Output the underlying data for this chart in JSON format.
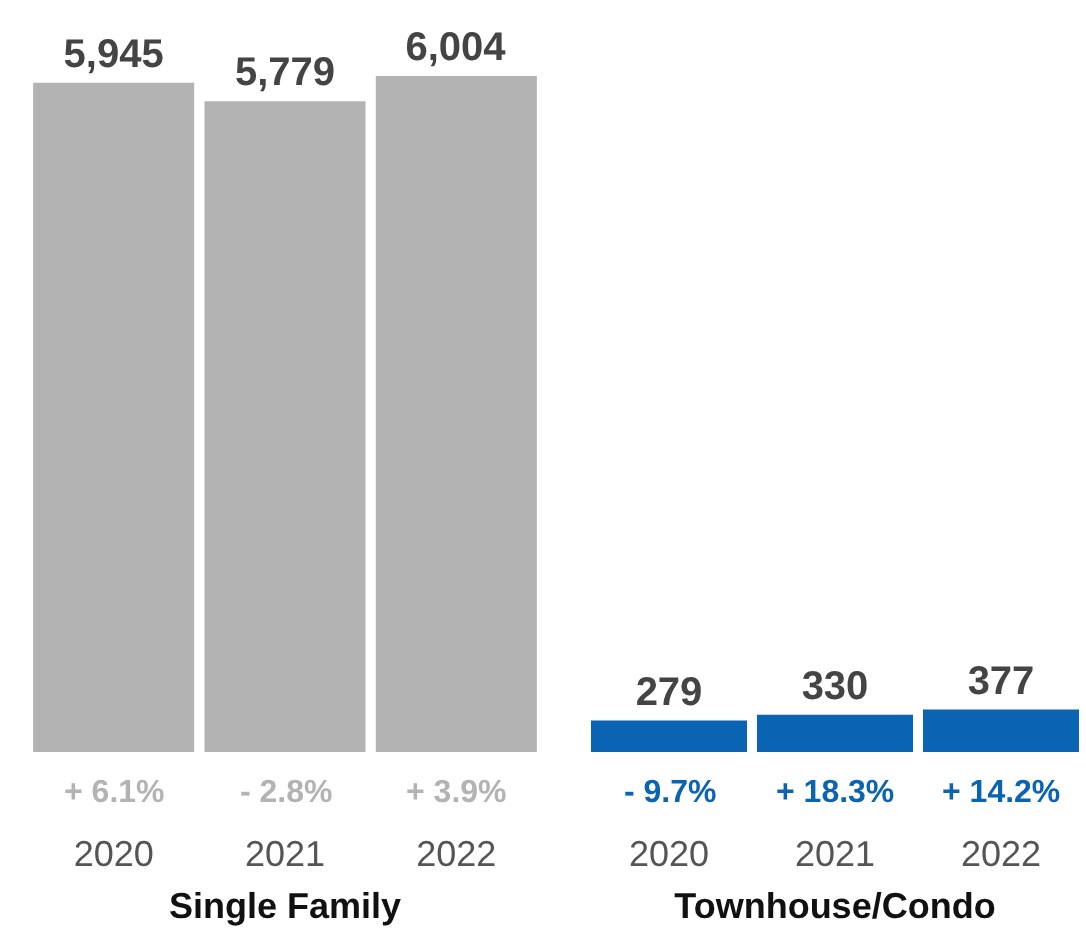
{
  "chart_data": [
    {
      "type": "bar",
      "xlabel": "Single Family",
      "categories": [
        "2020",
        "2021",
        "2022"
      ],
      "values": [
        5945,
        5779,
        6004
      ],
      "color": "#b3b3b3",
      "value_labels": [
        "5,945",
        "5,779",
        "6,004"
      ],
      "annotations": [
        "+ 6.1%",
        "- 2.8%",
        "+ 3.9%"
      ]
    },
    {
      "type": "bar",
      "xlabel": "Townhouse/Condo",
      "categories": [
        "2020",
        "2021",
        "2022"
      ],
      "values": [
        279,
        330,
        377
      ],
      "color": "#0a63b3",
      "value_labels": [
        "279",
        "330",
        "377"
      ],
      "annotations": [
        "- 9.7%",
        "+ 18.3%",
        "+ 14.2%"
      ]
    }
  ]
}
